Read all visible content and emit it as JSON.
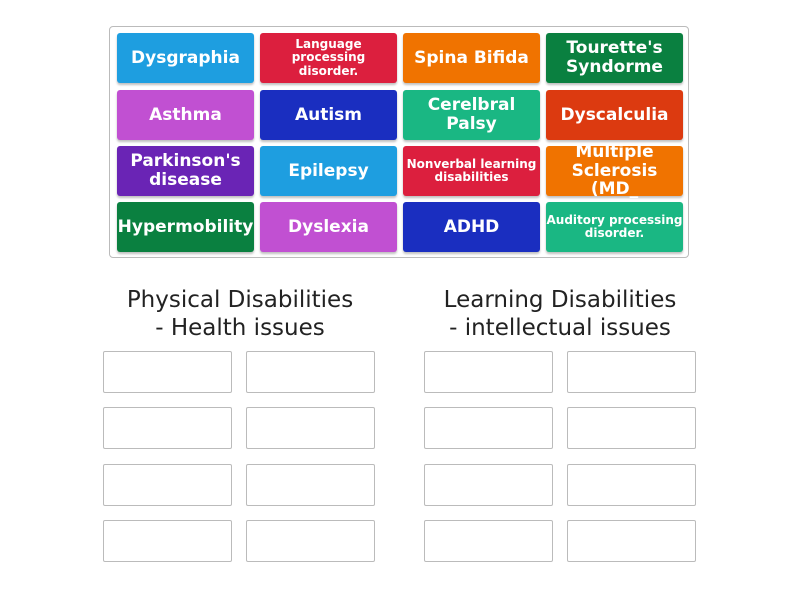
{
  "tiles": [
    {
      "label": "Dysgraphia",
      "color": "#1e9ee0",
      "size": "big"
    },
    {
      "label": "Language processing disorder.",
      "color": "#dc1f3e",
      "size": "small"
    },
    {
      "label": "Spina Bifida",
      "color": "#f07300",
      "size": "big"
    },
    {
      "label": "Tourette's Syndorme",
      "color": "#0a8040",
      "size": "big"
    },
    {
      "label": "Asthma",
      "color": "#c150d2",
      "size": "big"
    },
    {
      "label": "Autism",
      "color": "#1a2ec0",
      "size": "big"
    },
    {
      "label": "Cerelbral Palsy",
      "color": "#1ab783",
      "size": "big"
    },
    {
      "label": "Dyscalculia",
      "color": "#dc3a10",
      "size": "big"
    },
    {
      "label": "Parkinson's disease",
      "color": "#6a24b5",
      "size": "big"
    },
    {
      "label": "Epilepsy",
      "color": "#1e9ee0",
      "size": "big"
    },
    {
      "label": "Nonverbal learning disabilities",
      "color": "#dc1f3e",
      "size": "small"
    },
    {
      "label": "Multiple Sclerosis (MD_",
      "color": "#f07300",
      "size": "big"
    },
    {
      "label": "Hypermobility",
      "color": "#0a8040",
      "size": "big"
    },
    {
      "label": "Dyslexia",
      "color": "#c150d2",
      "size": "big"
    },
    {
      "label": "ADHD",
      "color": "#1a2ec0",
      "size": "big"
    },
    {
      "label": "Auditory processing disorder.",
      "color": "#1ab783",
      "size": "small"
    }
  ],
  "groups": [
    {
      "title_line1": "Physical Disabilities",
      "title_line2": "- Health issues"
    },
    {
      "title_line1": "Learning Disabilities",
      "title_line2": "- intellectual issues"
    }
  ]
}
